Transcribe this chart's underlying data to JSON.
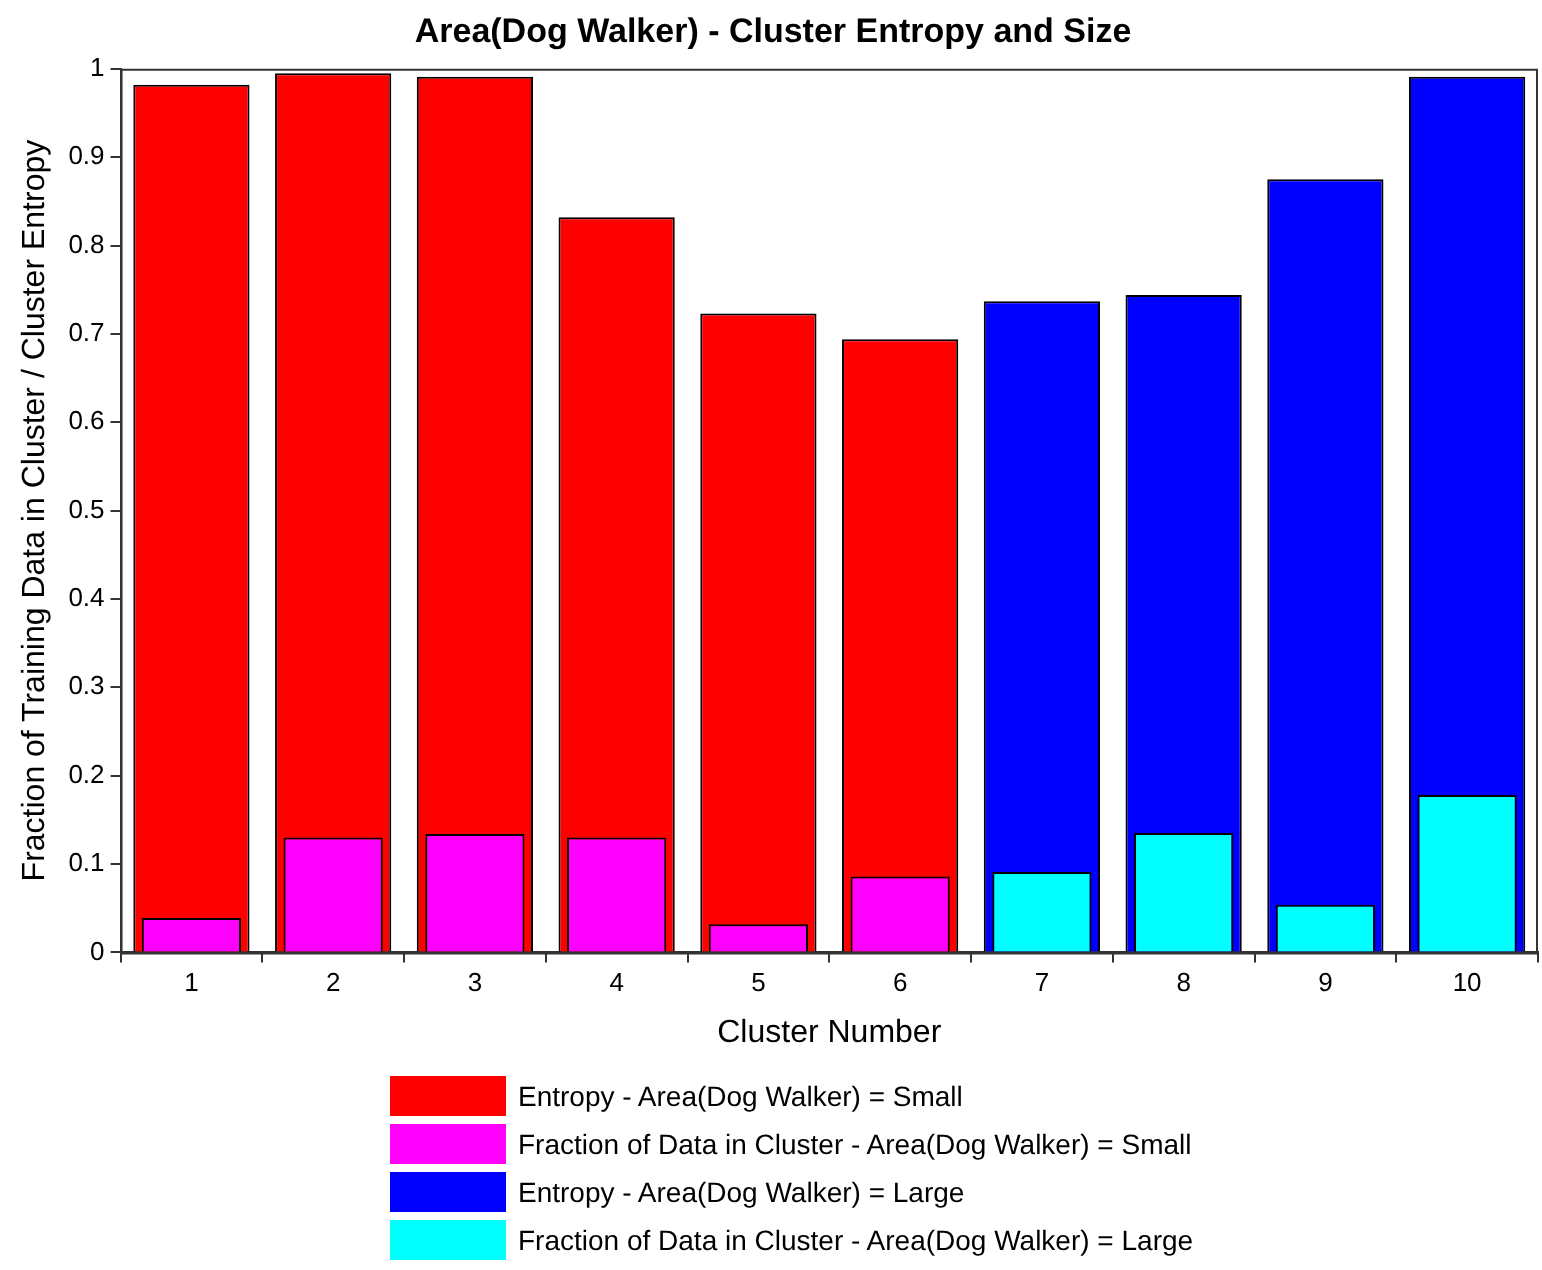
{
  "chart_data": {
    "type": "bar",
    "title": "Area(Dog Walker) - Cluster Entropy and Size",
    "xlabel": "Cluster Number",
    "ylabel": "Fraction of Training Data in Cluster / Cluster Entropy",
    "categories": [
      "1",
      "2",
      "3",
      "4",
      "5",
      "6",
      "7",
      "8",
      "9",
      "10"
    ],
    "series": [
      {
        "name": "Entropy - Area(Dog Walker) = Small",
        "color": "#ff0000",
        "values": [
          0.982,
          0.995,
          0.991,
          0.832,
          0.723,
          0.694,
          null,
          null,
          null,
          null
        ]
      },
      {
        "name": "Fraction of Data in Cluster - Area(Dog Walker) = Small",
        "color": "#ff00ff",
        "values": [
          0.039,
          0.13,
          0.134,
          0.13,
          0.032,
          0.086,
          null,
          null,
          null,
          null
        ]
      },
      {
        "name": "Entropy - Area(Dog Walker) = Large",
        "color": "#0000ff",
        "values": [
          null,
          null,
          null,
          null,
          null,
          null,
          0.737,
          0.744,
          0.875,
          0.991
        ]
      },
      {
        "name": "Fraction of Data in Cluster - Area(Dog Walker) = Large",
        "color": "#00ffff",
        "values": [
          null,
          null,
          null,
          null,
          null,
          null,
          0.091,
          0.135,
          0.054,
          0.178
        ]
      }
    ],
    "ylim": [
      0,
      1
    ],
    "yticks": [
      0,
      0.1,
      0.2,
      0.3,
      0.4,
      0.5,
      0.6,
      0.7,
      0.8,
      0.9,
      1
    ],
    "grid": false,
    "legend": "bottom"
  }
}
